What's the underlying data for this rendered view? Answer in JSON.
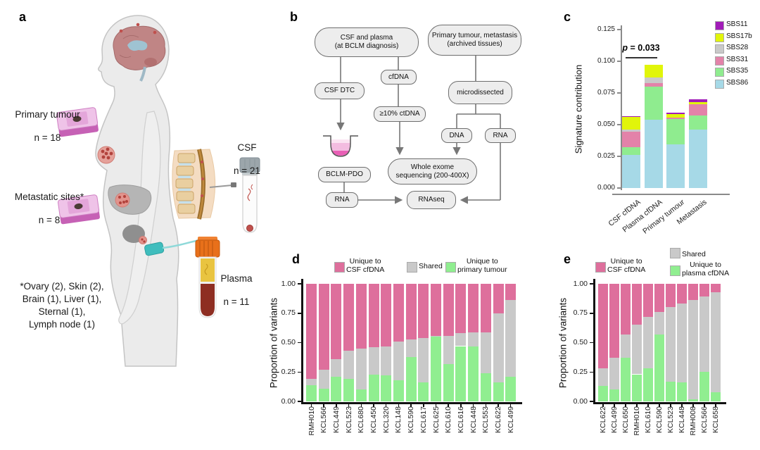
{
  "figure": {
    "panel_labels": {
      "a": "a",
      "b": "b",
      "c": "c",
      "d": "d",
      "e": "e"
    }
  },
  "panel_a": {
    "primary_tumour": {
      "label": "Primary tumour",
      "n": "n = 18"
    },
    "metastatic_sites": {
      "label": "Metastatic sites*",
      "n": "n = 8"
    },
    "csf": {
      "label": "CSF",
      "n": "n = 21"
    },
    "plasma": {
      "label": "Plasma",
      "n": "n = 11"
    },
    "footnote": "*Ovary (2), Skin (2),\nBrain (1), Liver (1),\nSternal (1),\nLymph node (1)"
  },
  "panel_b": {
    "nodes": {
      "csf_plasma": "CSF and plasma\n(at BCLM diagnosis)",
      "primary_met": "Primary tumour, metastasis\n(archived tissues)",
      "cfdna": "cfDNA",
      "csf_dtc": "CSF DTC",
      "microdissected": "microdissected",
      "ctdna": "≥10% ctDNA",
      "dna": "DNA",
      "rna_right": "RNA",
      "bclm_pdo": "BCLM-PDO",
      "wes": "Whole exome\nsequencing (200-400X)",
      "rna_left": "RNA",
      "rnaseq": "RNAseq"
    }
  },
  "chart_data": [
    {
      "id": "c",
      "type": "bar",
      "stacked": true,
      "title": "",
      "ylabel": "Signature contribution",
      "xlabel": "",
      "ylim": [
        0,
        0.125
      ],
      "yticks": [
        0.0,
        0.025,
        0.05,
        0.075,
        0.1,
        0.125
      ],
      "grid": false,
      "legend_position": "top-right",
      "categories": [
        "CSF cfDNA",
        "Plasma cfDNA",
        "Primary tumour",
        "Metastasis"
      ],
      "legend": [
        {
          "label": "SBS11",
          "color": "#A11CB8"
        },
        {
          "label": "SBS17b",
          "color": "#E1F50A"
        },
        {
          "label": "SBS28",
          "color": "#C9C9C9"
        },
        {
          "label": "SBS31",
          "color": "#E382A9"
        },
        {
          "label": "SBS35",
          "color": "#8FEC8F"
        },
        {
          "label": "SBS86",
          "color": "#A6D9E7"
        }
      ],
      "series_note": "series listed bottom-to-top of stack",
      "series": [
        {
          "name": "SBS86",
          "color": "#A6D9E7",
          "values": [
            0.026,
            0.054,
            0.0345,
            0.046
          ]
        },
        {
          "name": "SBS35",
          "color": "#8FEC8F",
          "values": [
            0.006,
            0.026,
            0.02,
            0.011
          ]
        },
        {
          "name": "SBS31",
          "color": "#E382A9",
          "values": [
            0.0125,
            0.003,
            0.001,
            0.009
          ]
        },
        {
          "name": "SBS28",
          "color": "#C9C9C9",
          "values": [
            0.0015,
            0.004,
            0.0,
            0.0
          ]
        },
        {
          "name": "SBS17b",
          "color": "#E1F50A",
          "values": [
            0.01,
            0.01,
            0.003,
            0.002
          ]
        },
        {
          "name": "SBS11",
          "color": "#A11CB8",
          "values": [
            0.0008,
            0.0,
            0.0008,
            0.002
          ]
        }
      ],
      "annotation": {
        "text_italic": "p",
        "text_rest": " = 0.033",
        "between": [
          "CSF cfDNA",
          "Plasma cfDNA"
        ]
      }
    },
    {
      "id": "d",
      "type": "bar",
      "stacked": true,
      "title": "",
      "ylabel": "Proportion of variants",
      "xlabel": "",
      "ylim": [
        0,
        1
      ],
      "yticks": [
        0.0,
        0.25,
        0.5,
        0.75,
        1.0
      ],
      "grid": false,
      "legend_position": "top",
      "categories": [
        "RMH010",
        "KCL566",
        "KCL449",
        "KCL523",
        "KCL680",
        "KCL450",
        "KCL320",
        "KCL148",
        "KCL590",
        "KCL617",
        "KCL625",
        "KCL610",
        "KCL616",
        "KCL448",
        "KCL553",
        "KCL622",
        "KCL499"
      ],
      "legend": [
        {
          "label": "Unique to\nCSF cfDNA",
          "color": "#DE6F9C"
        },
        {
          "label": "Shared",
          "color": "#C9C9C9"
        },
        {
          "label": "Unique to\nprimary tumour",
          "color": "#90EE90"
        }
      ],
      "series_note": "series listed bottom-to-top of stack",
      "series": [
        {
          "name": "Unique to primary tumour",
          "color": "#90EE90",
          "values": [
            0.14,
            0.11,
            0.21,
            0.19,
            0.1,
            0.23,
            0.22,
            0.18,
            0.38,
            0.16,
            0.55,
            0.32,
            0.47,
            0.47,
            0.24,
            0.16,
            0.21
          ]
        },
        {
          "name": "Shared",
          "color": "#C9C9C9",
          "values": [
            0.05,
            0.16,
            0.15,
            0.24,
            0.35,
            0.23,
            0.25,
            0.33,
            0.15,
            0.38,
            0.01,
            0.24,
            0.11,
            0.12,
            0.35,
            0.59,
            0.65
          ]
        },
        {
          "name": "Unique to CSF cfDNA",
          "color": "#DE6F9C",
          "values": [
            0.81,
            0.73,
            0.64,
            0.57,
            0.55,
            0.54,
            0.53,
            0.49,
            0.47,
            0.46,
            0.44,
            0.44,
            0.42,
            0.41,
            0.41,
            0.25,
            0.14
          ]
        }
      ]
    },
    {
      "id": "e",
      "type": "bar",
      "stacked": true,
      "title": "",
      "ylabel": "Proportion of variants",
      "xlabel": "",
      "ylim": [
        0,
        1
      ],
      "yticks": [
        0.0,
        0.25,
        0.5,
        0.75,
        1.0
      ],
      "grid": false,
      "legend_position": "top",
      "categories": [
        "KCL622",
        "KCL499",
        "KCL650",
        "RMH010",
        "KCL610",
        "KCL590",
        "KCL523",
        "KCL448",
        "RMH008",
        "KCL566",
        "KCL658"
      ],
      "legend": [
        {
          "label": "Unique to\nCSF cfDNA",
          "color": "#DE6F9C"
        },
        {
          "label": "Shared",
          "color": "#C9C9C9"
        },
        {
          "label": "Unique to\nplasma cfDNA",
          "color": "#90EE90"
        }
      ],
      "series_note": "series listed bottom-to-top of stack",
      "series": [
        {
          "name": "Unique to plasma cfDNA",
          "color": "#90EE90",
          "values": [
            0.13,
            0.1,
            0.37,
            0.23,
            0.28,
            0.57,
            0.17,
            0.16,
            0.02,
            0.25,
            0.08
          ]
        },
        {
          "name": "Shared",
          "color": "#C9C9C9",
          "values": [
            0.15,
            0.27,
            0.2,
            0.42,
            0.44,
            0.19,
            0.63,
            0.67,
            0.84,
            0.64,
            0.85
          ]
        },
        {
          "name": "Unique to CSF cfDNA",
          "color": "#DE6F9C",
          "values": [
            0.72,
            0.63,
            0.43,
            0.35,
            0.28,
            0.24,
            0.2,
            0.17,
            0.14,
            0.11,
            0.07
          ]
        }
      ]
    }
  ]
}
